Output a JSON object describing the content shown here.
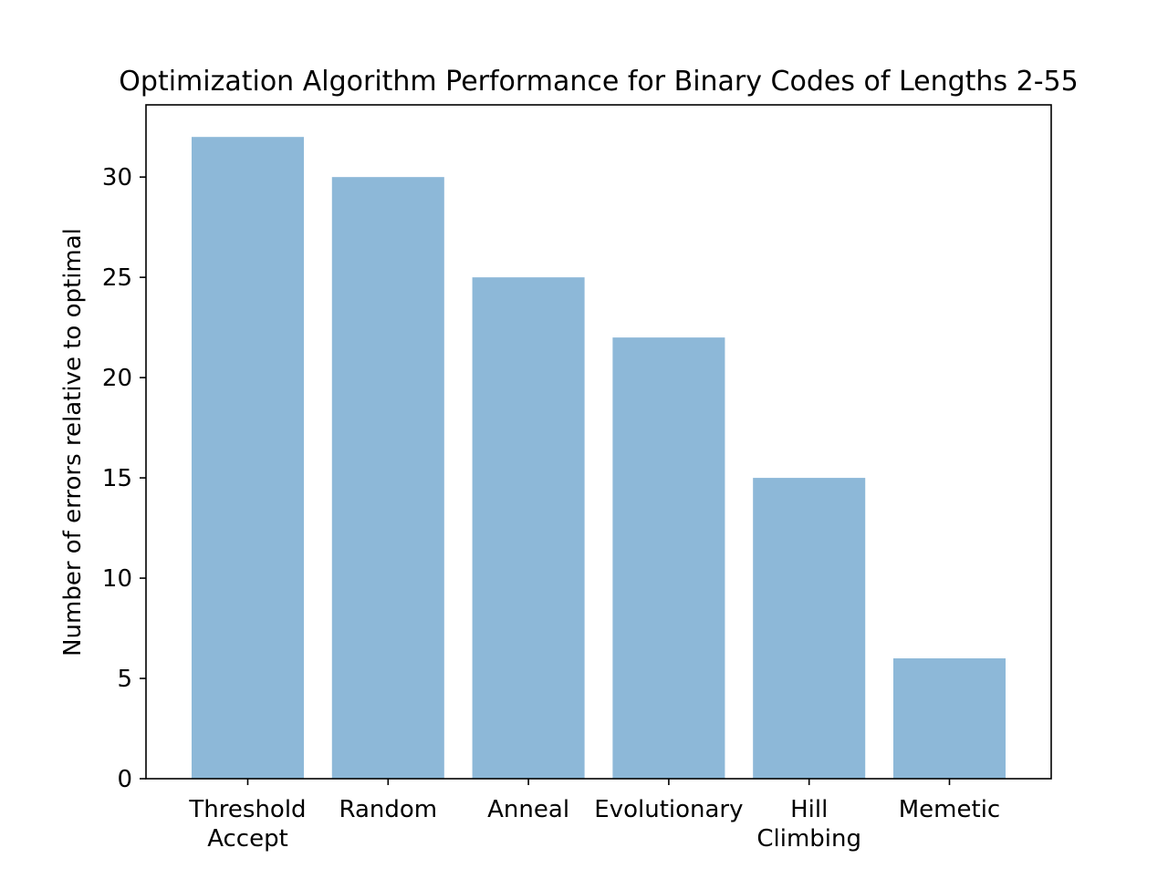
{
  "chart_data": {
    "type": "bar",
    "title": "Optimization Algorithm Performance for Binary Codes of Lengths 2-55",
    "xlabel": "",
    "ylabel": "Number of errors relative to optimal",
    "categories": [
      [
        "Threshold",
        "Accept"
      ],
      [
        "Random"
      ],
      [
        "Anneal"
      ],
      [
        "Evolutionary"
      ],
      [
        "Hill",
        "Climbing"
      ],
      [
        "Memetic"
      ]
    ],
    "values": [
      32,
      30,
      25,
      22,
      15,
      6
    ],
    "ylim": [
      0,
      33.6
    ],
    "yticks": [
      0,
      5,
      10,
      15,
      20,
      25,
      30
    ],
    "bar_color": "#8db8d8",
    "grid": false,
    "legend": "none"
  }
}
